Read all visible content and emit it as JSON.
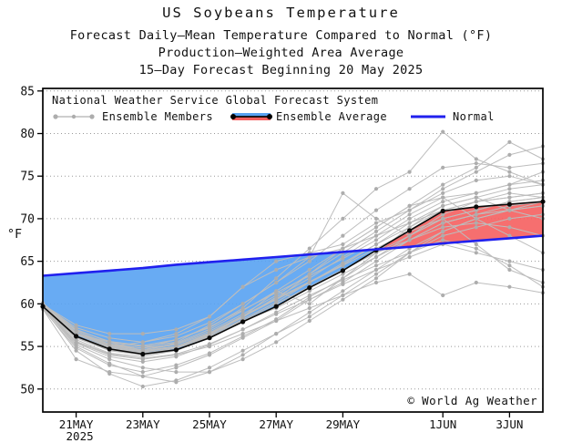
{
  "title": {
    "line1": "US Soybeans Temperature",
    "line2": "Forecast Daily–Mean Temperature Compared to Normal (°F)",
    "line3": "Production–Weighted Area Average",
    "line4": "15–Day Forecast Beginning 20 May 2025"
  },
  "legend": {
    "header": "National Weather Service Global Forecast System",
    "members_label": "Ensemble Members",
    "average_label": "Ensemble Average",
    "normal_label": "Normal"
  },
  "copyright": "© World Ag Weather",
  "axes": {
    "y_label": "°F",
    "y_ticks": [
      85,
      80,
      75,
      70,
      65,
      60,
      55,
      50
    ],
    "x_ticks": [
      {
        "label": "21MAY",
        "day": 1
      },
      {
        "label": "23MAY",
        "day": 3
      },
      {
        "label": "25MAY",
        "day": 5
      },
      {
        "label": "27MAY",
        "day": 7
      },
      {
        "label": "29MAY",
        "day": 9
      },
      {
        "label": "1JUN",
        "day": 12
      },
      {
        "label": "3JUN",
        "day": 14
      }
    ],
    "year_label": "2025"
  },
  "colors": {
    "below_normal_fill": "#58A2F2",
    "above_normal_fill": "#F55F5F",
    "normal_line": "#2020EE",
    "average_line": "#0a0a0a",
    "member_line": "#BDBDBD",
    "member_dot": "#ADADAD",
    "grid": "#999999",
    "frame": "#000000"
  },
  "chart_data": {
    "type": "line",
    "title": "US Soybeans Temperature",
    "subtitle": "Forecast Daily-Mean Temperature Compared to Normal (°F), Production-Weighted Area Average, 15-Day Forecast Beginning 20 May 2025",
    "xlabel": "",
    "ylabel": "°F",
    "ylim": [
      47.3,
      85.3
    ],
    "grid": "horizontal-dotted",
    "legend_position": "top-inside",
    "x_dates": [
      "20 May",
      "21 May",
      "22 May",
      "23 May",
      "24 May",
      "25 May",
      "26 May",
      "27 May",
      "28 May",
      "29 May",
      "30 May",
      "31 May",
      "1 Jun",
      "2 Jun",
      "3 Jun",
      "4 Jun"
    ],
    "series": [
      {
        "name": "Ensemble Average",
        "values": [
          59.7,
          56.2,
          54.7,
          54.1,
          54.6,
          56.0,
          57.9,
          59.7,
          61.9,
          63.9,
          66.3,
          68.6,
          70.9,
          71.4,
          71.7,
          72.0
        ]
      },
      {
        "name": "Normal",
        "values": [
          63.3,
          63.6,
          63.9,
          64.2,
          64.6,
          64.9,
          65.2,
          65.5,
          65.8,
          66.1,
          66.4,
          66.7,
          67.1,
          67.4,
          67.7,
          68.0
        ]
      }
    ],
    "ensemble_members": [
      [
        59.9,
        57.0,
        55.5,
        55.0,
        55.5,
        57.5,
        60.0,
        62.5,
        65.0,
        68.0,
        71.0,
        73.5,
        76.0,
        76.5,
        76.0,
        76.5
      ],
      [
        60.1,
        56.8,
        55.2,
        54.8,
        55.8,
        57.2,
        59.5,
        63.0,
        66.5,
        70.0,
        73.5,
        75.5,
        80.2,
        77.0,
        75.5,
        74.0
      ],
      [
        59.8,
        56.5,
        55.0,
        55.5,
        56.5,
        58.5,
        62.0,
        65.0,
        66.0,
        67.0,
        69.5,
        71.0,
        73.0,
        74.5,
        75.0,
        74.0
      ],
      [
        59.6,
        55.8,
        54.2,
        53.8,
        54.5,
        56.5,
        58.5,
        60.5,
        63.5,
        66.5,
        69.0,
        71.5,
        72.5,
        73.0,
        74.0,
        75.5
      ],
      [
        59.4,
        53.5,
        52.0,
        51.5,
        52.5,
        54.0,
        56.0,
        58.0,
        60.5,
        62.5,
        65.0,
        67.5,
        69.5,
        70.5,
        71.0,
        71.5
      ],
      [
        59.5,
        54.5,
        51.8,
        50.3,
        51.0,
        52.5,
        54.5,
        56.5,
        58.5,
        61.0,
        63.5,
        66.0,
        68.0,
        69.0,
        70.0,
        70.5
      ],
      [
        59.6,
        55.0,
        53.0,
        51.5,
        50.8,
        52.0,
        54.0,
        56.5,
        59.0,
        61.5,
        64.0,
        66.5,
        68.5,
        70.0,
        71.0,
        71.5
      ],
      [
        59.7,
        55.5,
        54.0,
        53.5,
        54.0,
        55.0,
        56.5,
        58.0,
        59.5,
        61.0,
        62.5,
        63.5,
        61.0,
        62.5,
        62.0,
        61.3
      ],
      [
        59.8,
        56.5,
        55.0,
        54.5,
        55.0,
        56.5,
        58.5,
        60.5,
        62.5,
        64.5,
        66.5,
        68.5,
        70.0,
        67.0,
        64.0,
        62.5
      ],
      [
        59.9,
        56.0,
        54.5,
        54.0,
        54.5,
        56.0,
        58.0,
        60.0,
        62.0,
        64.0,
        66.0,
        68.0,
        70.0,
        71.0,
        72.0,
        72.5
      ],
      [
        59.5,
        56.5,
        55.5,
        54.5,
        55.0,
        56.5,
        58.0,
        59.5,
        61.5,
        63.5,
        65.5,
        67.5,
        69.5,
        70.5,
        71.5,
        72.0
      ],
      [
        60.0,
        56.8,
        55.3,
        54.8,
        55.3,
        56.8,
        58.8,
        61.0,
        63.5,
        66.0,
        68.5,
        71.0,
        73.5,
        75.5,
        77.5,
        78.5
      ],
      [
        59.7,
        56.2,
        54.9,
        54.3,
        55.0,
        56.3,
        58.5,
        61.5,
        60.0,
        63.0,
        66.0,
        69.0,
        71.5,
        72.5,
        71.0,
        70.0
      ],
      [
        59.6,
        55.2,
        53.5,
        52.5,
        52.0,
        52.0,
        53.5,
        55.5,
        58.0,
        60.5,
        63.0,
        66.0,
        68.5,
        70.0,
        71.0,
        72.0
      ],
      [
        59.8,
        56.6,
        55.2,
        54.6,
        55.2,
        56.6,
        58.6,
        60.6,
        62.6,
        64.6,
        67.0,
        69.5,
        71.5,
        72.5,
        73.5,
        74.0
      ],
      [
        59.9,
        57.2,
        56.0,
        55.5,
        56.2,
        57.8,
        60.0,
        62.5,
        65.5,
        73.0,
        70.0,
        68.0,
        70.5,
        72.0,
        73.0,
        72.5
      ],
      [
        59.5,
        55.6,
        54.1,
        53.6,
        54.1,
        55.3,
        57.0,
        58.8,
        60.5,
        62.3,
        64.0,
        65.5,
        67.0,
        66.0,
        65.0,
        64.0
      ],
      [
        59.6,
        56.0,
        54.6,
        54.0,
        54.8,
        56.2,
        58.2,
        60.2,
        62.5,
        64.8,
        67.0,
        69.0,
        71.0,
        72.0,
        72.5,
        73.0
      ],
      [
        59.7,
        56.4,
        55.0,
        54.4,
        54.9,
        56.4,
        58.4,
        60.8,
        63.0,
        65.5,
        68.0,
        70.5,
        72.5,
        70.0,
        68.0,
        66.0
      ],
      [
        60.0,
        56.6,
        55.1,
        54.6,
        55.4,
        57.0,
        59.2,
        61.5,
        64.0,
        66.5,
        69.0,
        71.5,
        74.0,
        76.0,
        79.0,
        77.0
      ],
      [
        59.4,
        54.8,
        52.8,
        52.0,
        52.8,
        54.2,
        56.2,
        58.2,
        60.8,
        63.0,
        65.5,
        68.0,
        70.0,
        71.0,
        72.0,
        72.5
      ],
      [
        59.8,
        56.9,
        55.6,
        55.1,
        55.8,
        57.3,
        59.3,
        61.3,
        63.3,
        65.3,
        67.5,
        70.0,
        72.0,
        73.0,
        74.0,
        74.5
      ],
      [
        59.6,
        56.1,
        54.8,
        54.2,
        54.8,
        56.1,
        58.0,
        60.0,
        62.0,
        64.0,
        66.0,
        67.5,
        69.0,
        69.5,
        69.0,
        68.0
      ],
      [
        59.9,
        57.5,
        56.5,
        56.5,
        57.0,
        58.5,
        62.0,
        64.0,
        65.5,
        66.5,
        68.0,
        69.5,
        71.0,
        72.0,
        72.5,
        73.0
      ],
      [
        59.5,
        55.4,
        53.8,
        53.2,
        53.8,
        55.2,
        57.0,
        59.0,
        61.0,
        62.8,
        64.5,
        66.0,
        67.5,
        66.5,
        64.5,
        62.0
      ]
    ]
  }
}
